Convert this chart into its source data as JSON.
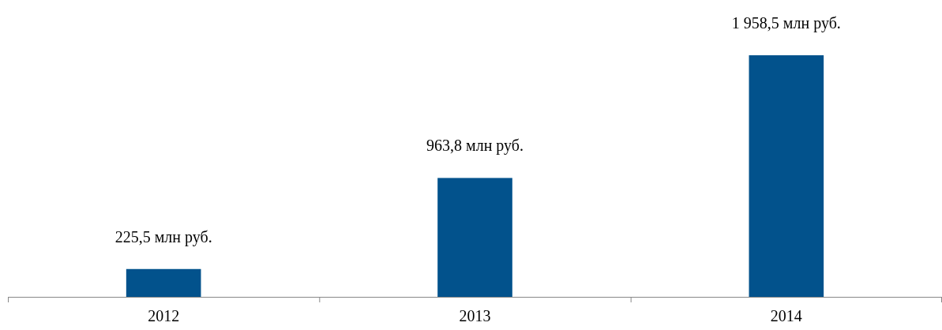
{
  "chart_data": {
    "type": "bar",
    "categories": [
      "2012",
      "2013",
      "2014"
    ],
    "values": [
      225.5,
      963.8,
      1958.5
    ],
    "color": "#02528c",
    "value_labels": [
      "225,5 млн руб.",
      "963,8 млн руб.",
      "1 958,5 млн руб."
    ]
  }
}
